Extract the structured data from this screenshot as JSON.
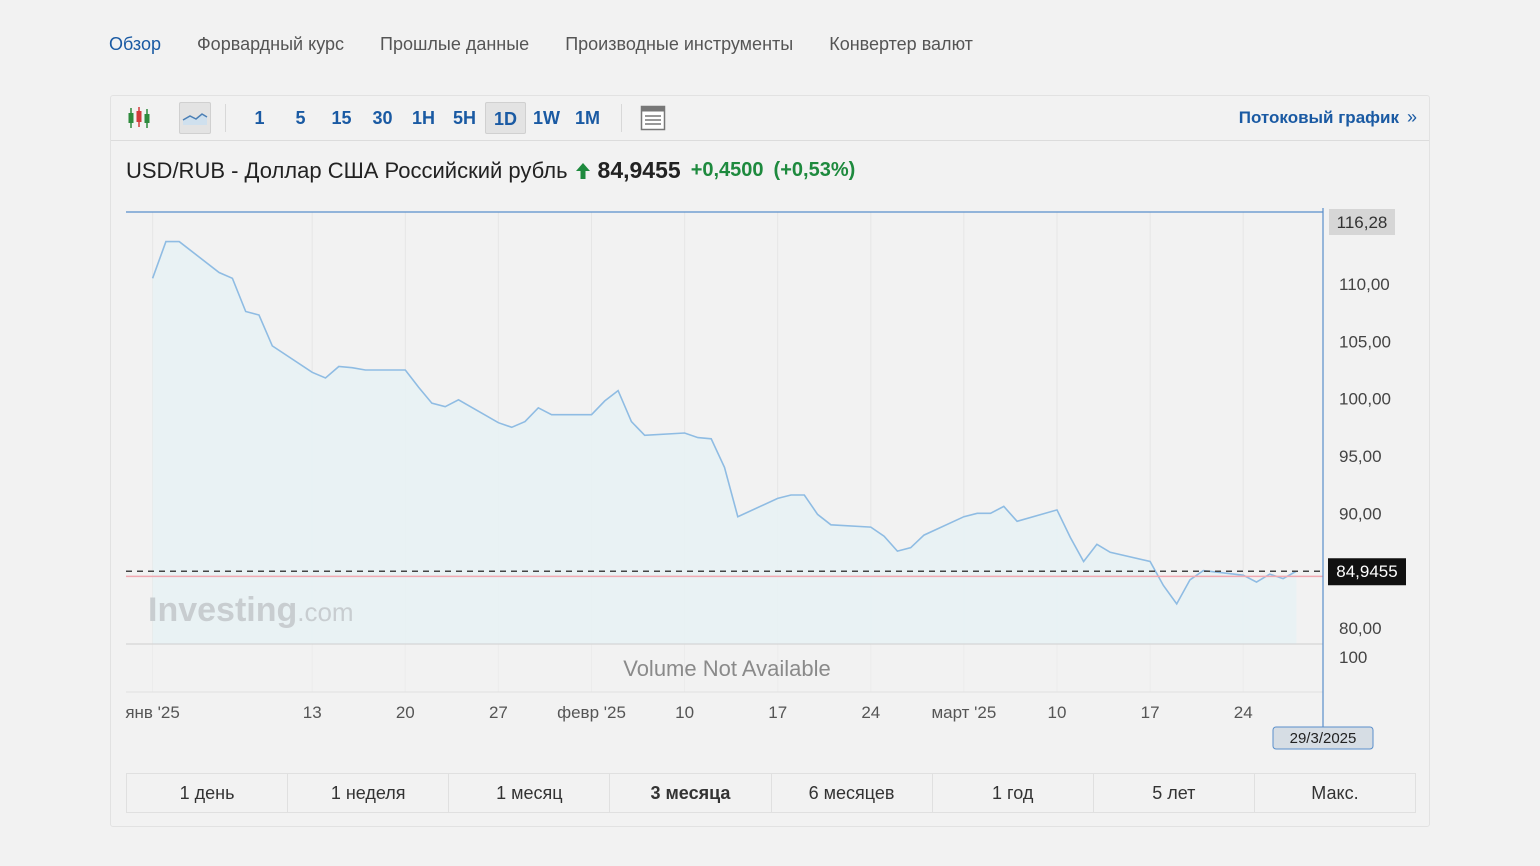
{
  "nav": [
    {
      "label": "Обзор",
      "active": true
    },
    {
      "label": "Форвардный курс",
      "active": false
    },
    {
      "label": "Прошлые данные",
      "active": false
    },
    {
      "label": "Производные инструменты",
      "active": false
    },
    {
      "label": "Конвертер валют",
      "active": false
    }
  ],
  "toolbar": {
    "chart_type_icons": [
      "candlestick-icon",
      "line-chart-icon"
    ],
    "intervals": [
      "1",
      "5",
      "15",
      "30",
      "1H",
      "5H",
      "1D",
      "1W",
      "1M"
    ],
    "active_interval": "1D",
    "table_icon": "table-icon",
    "streaming_label": "Потоковый график",
    "streaming_chevron": "»"
  },
  "quote": {
    "title": "USD/RUB - Доллар США Российский рубль",
    "price": "84,9455",
    "change": "+0,4500",
    "change_pct": "(+0,53%)",
    "direction": "up",
    "up_color": "#1e8a3e"
  },
  "chart_data": {
    "type": "area",
    "title": "USD/RUB - Доллар США Российский рубль",
    "series": [
      {
        "values": [
          {
            "x": "2025-01-01",
            "y": 110.5
          },
          {
            "x": "2025-01-02",
            "y": 113.7
          },
          {
            "x": "2025-01-03",
            "y": 113.7
          },
          {
            "x": "2025-01-06",
            "y": 111.0
          },
          {
            "x": "2025-01-07",
            "y": 110.5
          },
          {
            "x": "2025-01-08",
            "y": 107.6
          },
          {
            "x": "2025-01-09",
            "y": 107.3
          },
          {
            "x": "2025-01-10",
            "y": 104.6
          },
          {
            "x": "2025-01-13",
            "y": 102.3
          },
          {
            "x": "2025-01-14",
            "y": 101.8
          },
          {
            "x": "2025-01-15",
            "y": 102.8
          },
          {
            "x": "2025-01-16",
            "y": 102.7
          },
          {
            "x": "2025-01-17",
            "y": 102.5
          },
          {
            "x": "2025-01-20",
            "y": 102.5
          },
          {
            "x": "2025-01-21",
            "y": 101.0
          },
          {
            "x": "2025-01-22",
            "y": 99.6
          },
          {
            "x": "2025-01-23",
            "y": 99.3
          },
          {
            "x": "2025-01-24",
            "y": 99.9
          },
          {
            "x": "2025-01-27",
            "y": 97.9
          },
          {
            "x": "2025-01-28",
            "y": 97.5
          },
          {
            "x": "2025-01-29",
            "y": 98.0
          },
          {
            "x": "2025-01-30",
            "y": 99.2
          },
          {
            "x": "2025-01-31",
            "y": 98.6
          },
          {
            "x": "2025-02-03",
            "y": 98.6
          },
          {
            "x": "2025-02-04",
            "y": 99.8
          },
          {
            "x": "2025-02-05",
            "y": 100.7
          },
          {
            "x": "2025-02-06",
            "y": 98.0
          },
          {
            "x": "2025-02-07",
            "y": 96.8
          },
          {
            "x": "2025-02-10",
            "y": 97.0
          },
          {
            "x": "2025-02-11",
            "y": 96.6
          },
          {
            "x": "2025-02-12",
            "y": 96.5
          },
          {
            "x": "2025-02-13",
            "y": 94.0
          },
          {
            "x": "2025-02-14",
            "y": 89.7
          },
          {
            "x": "2025-02-17",
            "y": 91.3
          },
          {
            "x": "2025-02-18",
            "y": 91.6
          },
          {
            "x": "2025-02-19",
            "y": 91.6
          },
          {
            "x": "2025-02-20",
            "y": 89.9
          },
          {
            "x": "2025-02-21",
            "y": 89.0
          },
          {
            "x": "2025-02-24",
            "y": 88.8
          },
          {
            "x": "2025-02-25",
            "y": 88.0
          },
          {
            "x": "2025-02-26",
            "y": 86.7
          },
          {
            "x": "2025-02-27",
            "y": 87.0
          },
          {
            "x": "2025-02-28",
            "y": 88.1
          },
          {
            "x": "2025-03-03",
            "y": 89.7
          },
          {
            "x": "2025-03-04",
            "y": 90.0
          },
          {
            "x": "2025-03-05",
            "y": 90.0
          },
          {
            "x": "2025-03-06",
            "y": 90.6
          },
          {
            "x": "2025-03-07",
            "y": 89.3
          },
          {
            "x": "2025-03-10",
            "y": 90.3
          },
          {
            "x": "2025-03-11",
            "y": 87.9
          },
          {
            "x": "2025-03-12",
            "y": 85.8
          },
          {
            "x": "2025-03-13",
            "y": 87.3
          },
          {
            "x": "2025-03-14",
            "y": 86.6
          },
          {
            "x": "2025-03-17",
            "y": 85.8
          },
          {
            "x": "2025-03-18",
            "y": 83.7
          },
          {
            "x": "2025-03-19",
            "y": 82.1
          },
          {
            "x": "2025-03-20",
            "y": 84.2
          },
          {
            "x": "2025-03-21",
            "y": 85.0
          },
          {
            "x": "2025-03-24",
            "y": 84.6
          },
          {
            "x": "2025-03-25",
            "y": 84.0
          },
          {
            "x": "2025-03-26",
            "y": 84.7
          },
          {
            "x": "2025-03-27",
            "y": 84.3
          },
          {
            "x": "2025-03-28",
            "y": 84.9455
          }
        ]
      }
    ],
    "y_range": [
      78.6,
      116.28
    ],
    "y_ticks": [
      {
        "value": 110,
        "label": "110,00"
      },
      {
        "value": 105,
        "label": "105,00"
      },
      {
        "value": 100,
        "label": "100,00"
      },
      {
        "value": 95,
        "label": "95,00"
      },
      {
        "value": 90,
        "label": "90,00"
      },
      {
        "value": 80,
        "label": "80,00"
      }
    ],
    "y_top_label": "116,28",
    "x_range": [
      "2024-12-30",
      "2025-03-30"
    ],
    "x_ticks": [
      {
        "date": "2025-01-01",
        "label": "янв '25"
      },
      {
        "date": "2025-01-13",
        "label": "13"
      },
      {
        "date": "2025-01-20",
        "label": "20"
      },
      {
        "date": "2025-01-27",
        "label": "27"
      },
      {
        "date": "2025-02-03",
        "label": "февр '25"
      },
      {
        "date": "2025-02-10",
        "label": "10"
      },
      {
        "date": "2025-02-17",
        "label": "17"
      },
      {
        "date": "2025-02-24",
        "label": "24"
      },
      {
        "date": "2025-03-03",
        "label": "март '25"
      },
      {
        "date": "2025-03-10",
        "label": "10"
      },
      {
        "date": "2025-03-17",
        "label": "17"
      },
      {
        "date": "2025-03-24",
        "label": "24"
      }
    ],
    "current_value": 84.9455,
    "current_label": "84,9455",
    "red_line_value": 84.5,
    "crosshair_date": "2025-03-30",
    "crosshair_label": "29/3/2025",
    "watermark": {
      "brand": "Investing",
      "suffix": ".com"
    },
    "volume_text": "Volume Not Available",
    "volume_scale_label": "100",
    "grid": "vertical",
    "line_color": "#8fbce3",
    "fill_color": "#e8f2f4"
  },
  "periods": [
    {
      "label": "1 день",
      "active": false
    },
    {
      "label": "1 неделя",
      "active": false
    },
    {
      "label": "1 месяц",
      "active": false
    },
    {
      "label": "3 месяца",
      "active": true
    },
    {
      "label": "6 месяцев",
      "active": false
    },
    {
      "label": "1 год",
      "active": false
    },
    {
      "label": "5 лет",
      "active": false
    },
    {
      "label": "Макс.",
      "active": false
    }
  ]
}
